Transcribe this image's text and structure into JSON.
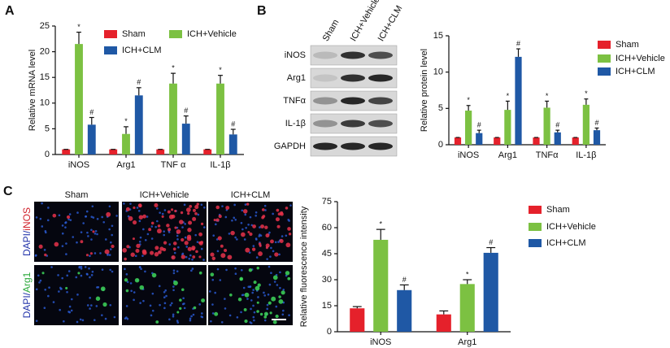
{
  "panels": [
    "A",
    "B",
    "C"
  ],
  "blot": {
    "lanes": [
      "Sham",
      "ICH+Vehicle",
      "ICH+CLM"
    ],
    "rows": [
      "iNOS",
      "Arg1",
      "TNFα",
      "IL-1β",
      "GAPDH"
    ]
  },
  "micrographs": {
    "columns": [
      "Sham",
      "ICH+Vehicle",
      "ICH+CLM"
    ],
    "rows": [
      [
        "DAPI/",
        "iNOS"
      ],
      [
        "DAPI/",
        "Arg1"
      ]
    ]
  },
  "chart_data": [
    {
      "type": "bar",
      "y_label": "Relative mRNA level",
      "categories": [
        "iNOS",
        "Arg1",
        "TNF α",
        "IL-1β"
      ],
      "ylim": [
        0,
        25
      ],
      "yticks": [
        0,
        5,
        10,
        15,
        20,
        25
      ],
      "series": [
        {
          "name": "Sham",
          "color": "#e5212b",
          "values": [
            1,
            1,
            1,
            1
          ],
          "errors": [
            0,
            0,
            0,
            0
          ]
        },
        {
          "name": "ICH+Vehicle",
          "color": "#7cc142",
          "values": [
            21.5,
            4.0,
            13.8,
            13.8
          ],
          "errors": [
            2.3,
            1.4,
            2.0,
            1.6
          ],
          "markers": [
            "*",
            "*",
            "*",
            "*"
          ]
        },
        {
          "name": "ICH+CLM",
          "color": "#1f58a5",
          "values": [
            5.8,
            11.5,
            6.0,
            3.9
          ],
          "errors": [
            1.4,
            1.5,
            1.5,
            1.0
          ],
          "markers": [
            "#",
            "#",
            "#",
            "#"
          ]
        }
      ]
    },
    {
      "type": "bar",
      "y_label": "Relative protein level",
      "categories": [
        "iNOS",
        "Arg1",
        "TNFα",
        "IL-1β"
      ],
      "ylim": [
        0,
        15
      ],
      "yticks": [
        0,
        5,
        10,
        15
      ],
      "series": [
        {
          "name": "Sham",
          "color": "#e5212b",
          "values": [
            1,
            1,
            1,
            1
          ],
          "errors": [
            0,
            0,
            0,
            0
          ]
        },
        {
          "name": "ICH+Vehicle",
          "color": "#7cc142",
          "values": [
            4.7,
            4.8,
            5.1,
            5.5
          ],
          "errors": [
            0.7,
            1.2,
            0.9,
            0.8
          ],
          "markers": [
            "*",
            "*",
            "*",
            "*"
          ]
        },
        {
          "name": "ICH+CLM",
          "color": "#1f58a5",
          "values": [
            1.6,
            12.1,
            1.7,
            2.0
          ],
          "errors": [
            0.4,
            1.1,
            0.3,
            0.3
          ],
          "markers": [
            "#",
            "#",
            "#",
            "#"
          ]
        }
      ]
    },
    {
      "type": "bar",
      "y_label": "Relative fluorescence intensity",
      "categories": [
        "iNOS",
        "Arg1"
      ],
      "ylim": [
        0,
        75
      ],
      "yticks": [
        0,
        15,
        30,
        45,
        60,
        75
      ],
      "series": [
        {
          "name": "Sham",
          "color": "#e5212b",
          "values": [
            13.5,
            10
          ],
          "errors": [
            1,
            2
          ]
        },
        {
          "name": "ICH+Vehicle",
          "color": "#7cc142",
          "values": [
            53,
            27.5
          ],
          "errors": [
            6,
            2.5
          ],
          "markers": [
            "*",
            "*"
          ]
        },
        {
          "name": "ICH+CLM",
          "color": "#1f58a5",
          "values": [
            24,
            45.5
          ],
          "errors": [
            3,
            3
          ],
          "markers": [
            "#",
            "#"
          ]
        }
      ]
    }
  ]
}
